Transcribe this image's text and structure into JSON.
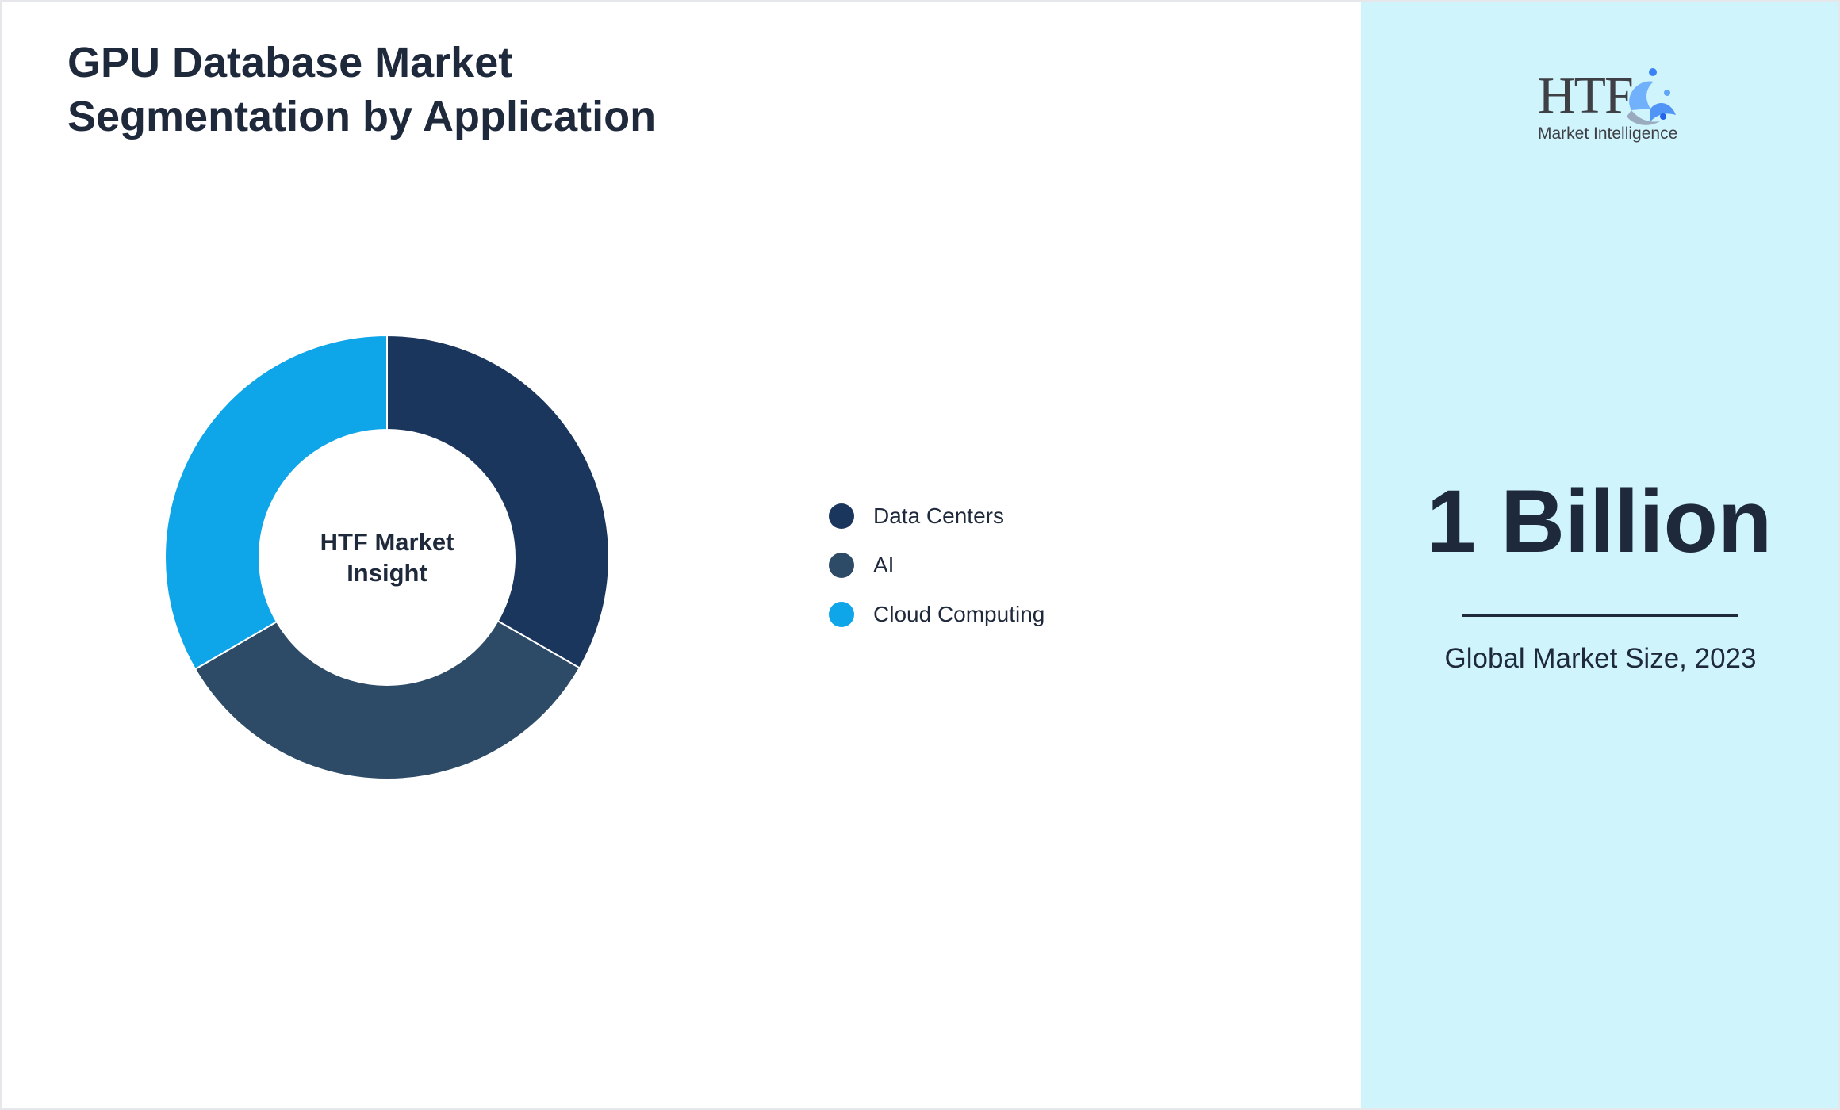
{
  "title": {
    "line1": "GPU Database Market",
    "line2": "Segmentation by Application"
  },
  "center_label": "HTF Market Insight",
  "logo": {
    "brand": "HTF",
    "tagline": "Market Intelligence"
  },
  "stat": {
    "value": "1 Billion",
    "caption": "Global Market Size, 2023"
  },
  "colors": {
    "data_centers": "#1b365d",
    "ai": "#2d4a67",
    "cloud_computing": "#0ea5e9",
    "side_panel": "#cff4fc",
    "text": "#1e293b"
  },
  "chart_data": {
    "type": "pie",
    "variant": "donut",
    "categories": [
      "Data Centers",
      "AI",
      "Cloud Computing"
    ],
    "values": [
      33.3,
      33.3,
      33.4
    ],
    "colors": [
      "#1b365d",
      "#2d4a67",
      "#0ea5e9"
    ],
    "legend_position": "right"
  }
}
